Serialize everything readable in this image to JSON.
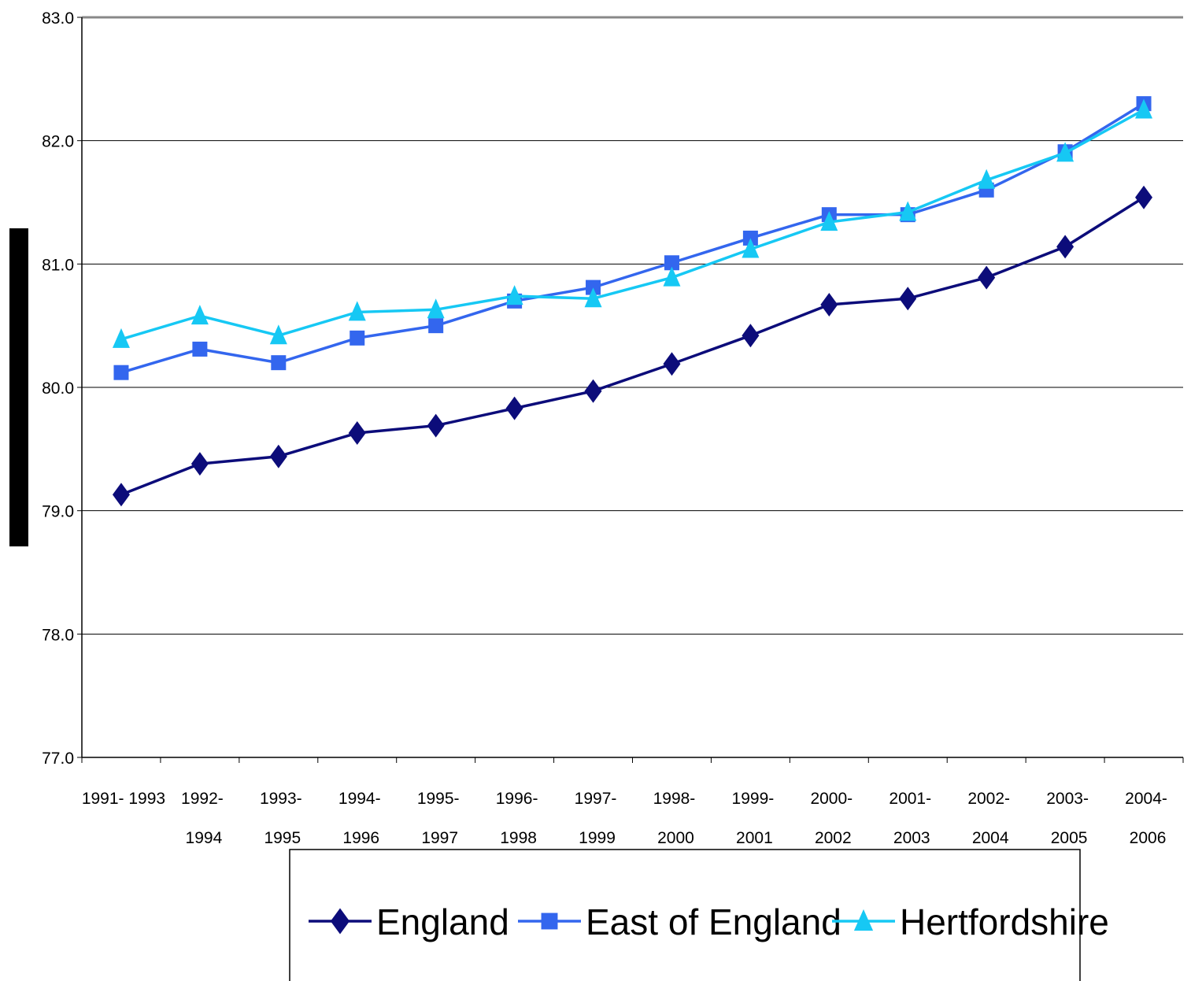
{
  "chart_data": {
    "type": "line",
    "title": "",
    "xlabel": "",
    "ylabel": "",
    "ylim": [
      77.0,
      83.0
    ],
    "yticks": [
      "77.0",
      "78.0",
      "79.0",
      "80.0",
      "81.0",
      "82.0",
      "83.0"
    ],
    "grid": true,
    "legend_position": "bottom",
    "categories": [
      [
        "1991- 1993",
        ""
      ],
      [
        "1992-",
        "1994"
      ],
      [
        "1993-",
        "1995"
      ],
      [
        "1994-",
        "1996"
      ],
      [
        "1995-",
        "1997"
      ],
      [
        "1996-",
        "1998"
      ],
      [
        "1997-",
        "1999"
      ],
      [
        "1998-",
        "2000"
      ],
      [
        "1999-",
        "2001"
      ],
      [
        "2000-",
        "2002"
      ],
      [
        "2001-",
        "2003"
      ],
      [
        "2002-",
        "2004"
      ],
      [
        "2003-",
        "2005"
      ],
      [
        "2004-",
        "2006"
      ]
    ],
    "series": [
      {
        "name": "England",
        "color": "#0c0c7a",
        "marker": "diamond",
        "values": [
          79.13,
          79.38,
          79.44,
          79.63,
          79.69,
          79.83,
          79.97,
          80.19,
          80.42,
          80.67,
          80.72,
          80.89,
          81.14,
          81.54
        ]
      },
      {
        "name": "East of England",
        "color": "#3366ee",
        "marker": "square",
        "values": [
          80.12,
          80.31,
          80.2,
          80.4,
          80.5,
          80.7,
          80.81,
          81.01,
          81.21,
          81.4,
          81.4,
          81.6,
          81.91,
          82.3
        ]
      },
      {
        "name": "Hertfordshire",
        "color": "#16c8f4",
        "marker": "triangle",
        "values": [
          80.39,
          80.58,
          80.42,
          80.61,
          80.63,
          80.74,
          80.72,
          80.89,
          81.12,
          81.34,
          81.42,
          81.68,
          81.9,
          82.25
        ]
      }
    ]
  }
}
